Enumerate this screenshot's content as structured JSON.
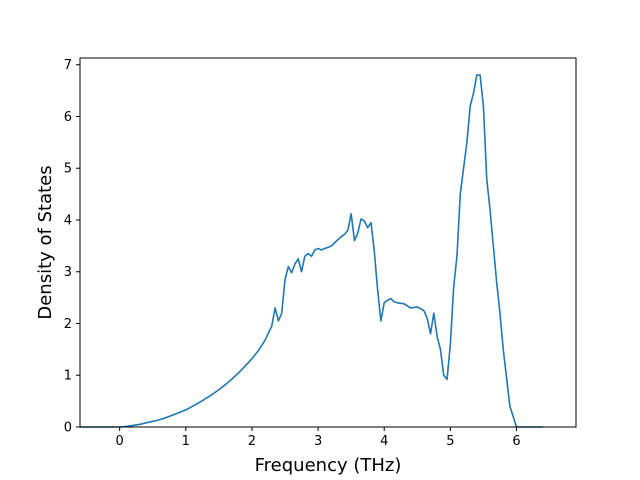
{
  "chart_data": {
    "type": "line",
    "title": "",
    "xlabel": "Frequency (THz)",
    "ylabel": "Density of States",
    "xlim": [
      -0.6,
      6.9
    ],
    "ylim": [
      0,
      7.13
    ],
    "xticks": [
      0,
      1,
      2,
      3,
      4,
      5,
      6
    ],
    "yticks": [
      0,
      1,
      2,
      3,
      4,
      5,
      6,
      7
    ],
    "grid": false,
    "line_color": "#1f77b4",
    "series": [
      {
        "x": [
          -0.6,
          -0.4,
          -0.2,
          0.0,
          0.1,
          0.2,
          0.3,
          0.4,
          0.5,
          0.6,
          0.7,
          0.8,
          0.9,
          1.0,
          1.1,
          1.2,
          1.3,
          1.4,
          1.5,
          1.6,
          1.7,
          1.8,
          1.9,
          2.0,
          2.1,
          2.2,
          2.25,
          2.3,
          2.35,
          2.4,
          2.45,
          2.5,
          2.55,
          2.6,
          2.65,
          2.7,
          2.75,
          2.8,
          2.85,
          2.9,
          2.95,
          3.0,
          3.05,
          3.1,
          3.15,
          3.2,
          3.3,
          3.35,
          3.4,
          3.45,
          3.5,
          3.55,
          3.6,
          3.65,
          3.7,
          3.75,
          3.8,
          3.85,
          3.9,
          3.95,
          4.0,
          4.05,
          4.1,
          4.15,
          4.2,
          4.3,
          4.4,
          4.5,
          4.6,
          4.65,
          4.7,
          4.75,
          4.8,
          4.85,
          4.9,
          4.95,
          5.0,
          5.05,
          5.1,
          5.15,
          5.2,
          5.25,
          5.3,
          5.35,
          5.4,
          5.45,
          5.5,
          5.55,
          5.6,
          5.65,
          5.7,
          5.75,
          5.8,
          5.9,
          6.0,
          6.2,
          6.4
        ],
        "y": [
          0,
          0,
          0,
          0,
          0.01,
          0.03,
          0.05,
          0.08,
          0.11,
          0.14,
          0.18,
          0.23,
          0.28,
          0.33,
          0.4,
          0.47,
          0.55,
          0.63,
          0.72,
          0.82,
          0.93,
          1.05,
          1.18,
          1.32,
          1.48,
          1.68,
          1.82,
          1.95,
          2.3,
          2.05,
          2.2,
          2.85,
          3.1,
          2.98,
          3.15,
          3.25,
          3.0,
          3.3,
          3.35,
          3.3,
          3.42,
          3.45,
          3.42,
          3.45,
          3.47,
          3.5,
          3.62,
          3.68,
          3.72,
          3.8,
          4.12,
          3.6,
          3.75,
          4.02,
          3.98,
          3.85,
          3.95,
          3.4,
          2.65,
          2.05,
          2.4,
          2.45,
          2.48,
          2.42,
          2.4,
          2.38,
          2.3,
          2.32,
          2.25,
          2.1,
          1.8,
          2.2,
          1.75,
          1.5,
          1.0,
          0.92,
          1.6,
          2.7,
          3.3,
          4.5,
          5.0,
          5.5,
          6.2,
          6.45,
          6.8,
          6.8,
          6.2,
          4.8,
          4.2,
          3.5,
          2.8,
          2.2,
          1.5,
          0.4,
          0.0,
          0.0,
          0.0
        ]
      }
    ]
  }
}
